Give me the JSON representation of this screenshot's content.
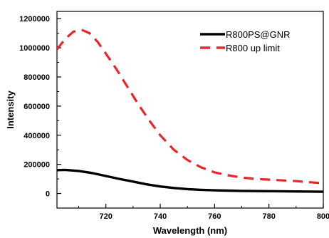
{
  "chart_data": {
    "type": "line",
    "title": "",
    "xlabel": "Wavelength (nm)",
    "ylabel": "Intensity",
    "xlim": [
      702,
      800
    ],
    "ylim": [
      -100000,
      1250000
    ],
    "xticks": [
      720,
      740,
      760,
      780,
      800
    ],
    "yticks": [
      0,
      200000,
      400000,
      600000,
      800000,
      1000000,
      1200000
    ],
    "xtick_labels": [
      "720",
      "740",
      "760",
      "780",
      "800"
    ],
    "ytick_labels": [
      "0",
      "200000",
      "400000",
      "600000",
      "800000",
      "1000000",
      "1200000"
    ],
    "grid": false,
    "legend_position": "top-right",
    "series": [
      {
        "name": "R800PS@GNR",
        "color": "#000000",
        "style": "solid",
        "x": [
          702,
          705,
          710,
          715,
          720,
          725,
          730,
          735,
          740,
          745,
          750,
          755,
          760,
          765,
          770,
          780,
          790,
          800
        ],
        "y": [
          160000,
          162000,
          155000,
          140000,
          120000,
          100000,
          82000,
          63000,
          48000,
          38000,
          30000,
          25000,
          22000,
          20000,
          18000,
          16000,
          14000,
          12000
        ]
      },
      {
        "name": "R800 up limit",
        "color": "#e8262a",
        "style": "dashed",
        "x": [
          702,
          705,
          708,
          711,
          714,
          717,
          720,
          724,
          728,
          732,
          736,
          740,
          745,
          750,
          755,
          760,
          765,
          770,
          775,
          780,
          790,
          800
        ],
        "y": [
          990000,
          1060000,
          1110000,
          1125000,
          1100000,
          1040000,
          960000,
          850000,
          730000,
          610000,
          500000,
          400000,
          300000,
          230000,
          180000,
          145000,
          125000,
          110000,
          100000,
          95000,
          85000,
          70000
        ]
      }
    ]
  }
}
